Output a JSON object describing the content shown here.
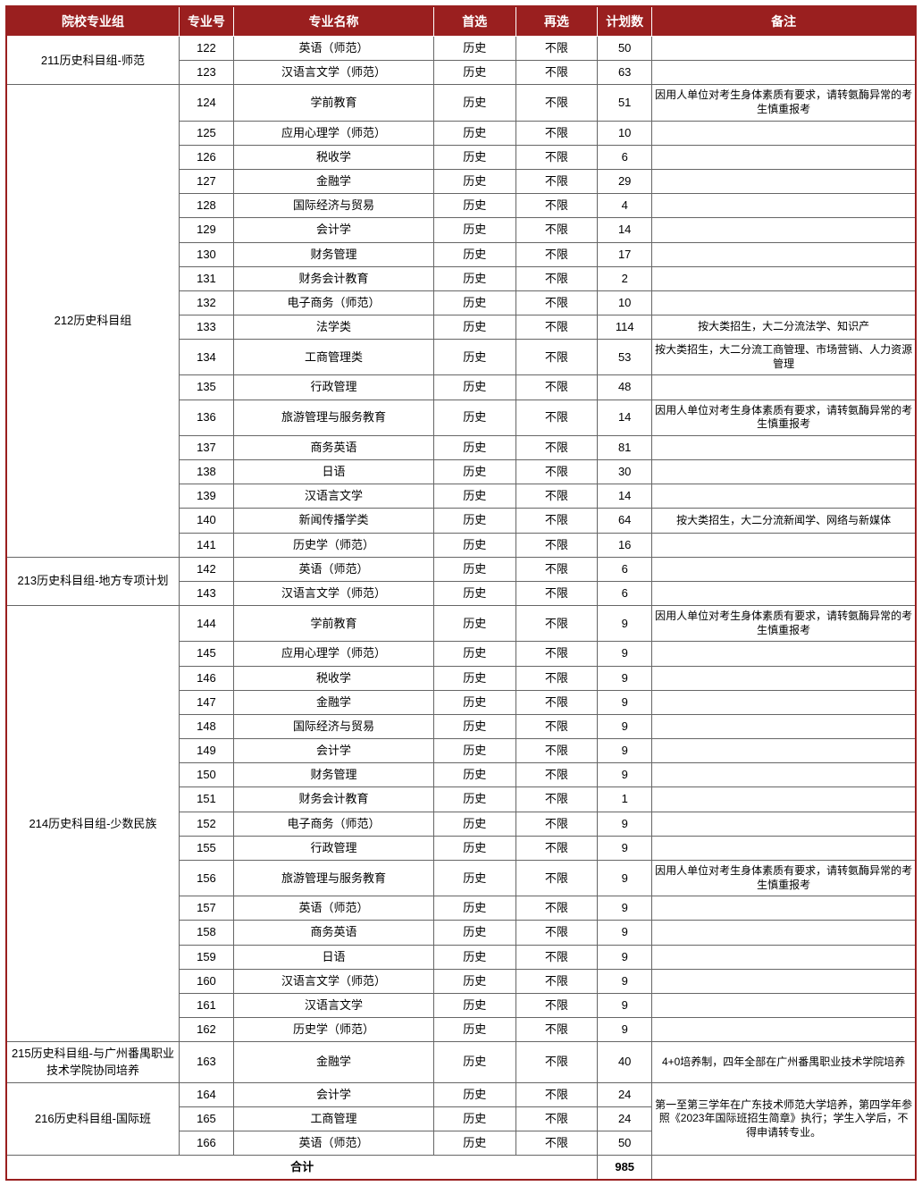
{
  "headers": {
    "group": "院校专业组",
    "code": "专业号",
    "name": "专业名称",
    "first": "首选",
    "second": "再选",
    "plan": "计划数",
    "remark": "备注"
  },
  "totalLabel": "合计",
  "totalValue": "985",
  "groups": [
    {
      "group": "211历史科目组-师范",
      "rows": [
        {
          "code": "122",
          "name": "英语（师范）",
          "first": "历史",
          "second": "不限",
          "plan": "50",
          "remark": ""
        },
        {
          "code": "123",
          "name": "汉语言文学（师范）",
          "first": "历史",
          "second": "不限",
          "plan": "63",
          "remark": ""
        }
      ]
    },
    {
      "group": "212历史科目组",
      "rows": [
        {
          "code": "124",
          "name": "学前教育",
          "first": "历史",
          "second": "不限",
          "plan": "51",
          "remark": "因用人单位对考生身体素质有要求，请转氨酶异常的考生慎重报考"
        },
        {
          "code": "125",
          "name": "应用心理学（师范）",
          "first": "历史",
          "second": "不限",
          "plan": "10",
          "remark": ""
        },
        {
          "code": "126",
          "name": "税收学",
          "first": "历史",
          "second": "不限",
          "plan": "6",
          "remark": ""
        },
        {
          "code": "127",
          "name": "金融学",
          "first": "历史",
          "second": "不限",
          "plan": "29",
          "remark": ""
        },
        {
          "code": "128",
          "name": "国际经济与贸易",
          "first": "历史",
          "second": "不限",
          "plan": "4",
          "remark": ""
        },
        {
          "code": "129",
          "name": "会计学",
          "first": "历史",
          "second": "不限",
          "plan": "14",
          "remark": ""
        },
        {
          "code": "130",
          "name": "财务管理",
          "first": "历史",
          "second": "不限",
          "plan": "17",
          "remark": ""
        },
        {
          "code": "131",
          "name": "财务会计教育",
          "first": "历史",
          "second": "不限",
          "plan": "2",
          "remark": ""
        },
        {
          "code": "132",
          "name": "电子商务（师范）",
          "first": "历史",
          "second": "不限",
          "plan": "10",
          "remark": ""
        },
        {
          "code": "133",
          "name": "法学类",
          "first": "历史",
          "second": "不限",
          "plan": "114",
          "remark": "按大类招生，大二分流法学、知识产"
        },
        {
          "code": "134",
          "name": "工商管理类",
          "first": "历史",
          "second": "不限",
          "plan": "53",
          "remark": "按大类招生，大二分流工商管理、市场营销、人力资源管理"
        },
        {
          "code": "135",
          "name": "行政管理",
          "first": "历史",
          "second": "不限",
          "plan": "48",
          "remark": ""
        },
        {
          "code": "136",
          "name": "旅游管理与服务教育",
          "first": "历史",
          "second": "不限",
          "plan": "14",
          "remark": "因用人单位对考生身体素质有要求，请转氨酶异常的考生慎重报考"
        },
        {
          "code": "137",
          "name": "商务英语",
          "first": "历史",
          "second": "不限",
          "plan": "81",
          "remark": ""
        },
        {
          "code": "138",
          "name": "日语",
          "first": "历史",
          "second": "不限",
          "plan": "30",
          "remark": ""
        },
        {
          "code": "139",
          "name": "汉语言文学",
          "first": "历史",
          "second": "不限",
          "plan": "14",
          "remark": ""
        },
        {
          "code": "140",
          "name": "新闻传播学类",
          "first": "历史",
          "second": "不限",
          "plan": "64",
          "remark": "按大类招生，大二分流新闻学、网络与新媒体"
        },
        {
          "code": "141",
          "name": "历史学（师范）",
          "first": "历史",
          "second": "不限",
          "plan": "16",
          "remark": ""
        }
      ]
    },
    {
      "group": "213历史科目组-地方专项计划",
      "rows": [
        {
          "code": "142",
          "name": "英语（师范）",
          "first": "历史",
          "second": "不限",
          "plan": "6",
          "remark": ""
        },
        {
          "code": "143",
          "name": "汉语言文学（师范）",
          "first": "历史",
          "second": "不限",
          "plan": "6",
          "remark": ""
        }
      ]
    },
    {
      "group": "214历史科目组-少数民族",
      "rows": [
        {
          "code": "144",
          "name": "学前教育",
          "first": "历史",
          "second": "不限",
          "plan": "9",
          "remark": "因用人单位对考生身体素质有要求，请转氨酶异常的考生慎重报考"
        },
        {
          "code": "145",
          "name": "应用心理学（师范）",
          "first": "历史",
          "second": "不限",
          "plan": "9",
          "remark": ""
        },
        {
          "code": "146",
          "name": "税收学",
          "first": "历史",
          "second": "不限",
          "plan": "9",
          "remark": ""
        },
        {
          "code": "147",
          "name": "金融学",
          "first": "历史",
          "second": "不限",
          "plan": "9",
          "remark": ""
        },
        {
          "code": "148",
          "name": "国际经济与贸易",
          "first": "历史",
          "second": "不限",
          "plan": "9",
          "remark": ""
        },
        {
          "code": "149",
          "name": "会计学",
          "first": "历史",
          "second": "不限",
          "plan": "9",
          "remark": ""
        },
        {
          "code": "150",
          "name": "财务管理",
          "first": "历史",
          "second": "不限",
          "plan": "9",
          "remark": ""
        },
        {
          "code": "151",
          "name": "财务会计教育",
          "first": "历史",
          "second": "不限",
          "plan": "1",
          "remark": ""
        },
        {
          "code": "152",
          "name": "电子商务（师范）",
          "first": "历史",
          "second": "不限",
          "plan": "9",
          "remark": ""
        },
        {
          "code": "155",
          "name": "行政管理",
          "first": "历史",
          "second": "不限",
          "plan": "9",
          "remark": ""
        },
        {
          "code": "156",
          "name": "旅游管理与服务教育",
          "first": "历史",
          "second": "不限",
          "plan": "9",
          "remark": "因用人单位对考生身体素质有要求，请转氨酶异常的考生慎重报考"
        },
        {
          "code": "157",
          "name": "英语（师范）",
          "first": "历史",
          "second": "不限",
          "plan": "9",
          "remark": ""
        },
        {
          "code": "158",
          "name": "商务英语",
          "first": "历史",
          "second": "不限",
          "plan": "9",
          "remark": ""
        },
        {
          "code": "159",
          "name": "日语",
          "first": "历史",
          "second": "不限",
          "plan": "9",
          "remark": ""
        },
        {
          "code": "160",
          "name": "汉语言文学（师范）",
          "first": "历史",
          "second": "不限",
          "plan": "9",
          "remark": ""
        },
        {
          "code": "161",
          "name": "汉语言文学",
          "first": "历史",
          "second": "不限",
          "plan": "9",
          "remark": ""
        },
        {
          "code": "162",
          "name": "历史学（师范）",
          "first": "历史",
          "second": "不限",
          "plan": "9",
          "remark": ""
        }
      ]
    },
    {
      "group": "215历史科目组-与广州番禺职业技术学院协同培养",
      "rows": [
        {
          "code": "163",
          "name": "金融学",
          "first": "历史",
          "second": "不限",
          "plan": "40",
          "remark": "4+0培养制，四年全部在广州番禺职业技术学院培养"
        }
      ]
    },
    {
      "group": "216历史科目组-国际班",
      "remarkSpan": "第一至第三学年在广东技术师范大学培养，第四学年参照《2023年国际班招生简章》执行；学生入学后，不得申请转专业。",
      "rows": [
        {
          "code": "164",
          "name": "会计学",
          "first": "历史",
          "second": "不限",
          "plan": "24"
        },
        {
          "code": "165",
          "name": "工商管理",
          "first": "历史",
          "second": "不限",
          "plan": "24"
        },
        {
          "code": "166",
          "name": "英语（师范）",
          "first": "历史",
          "second": "不限",
          "plan": "50"
        }
      ]
    }
  ]
}
